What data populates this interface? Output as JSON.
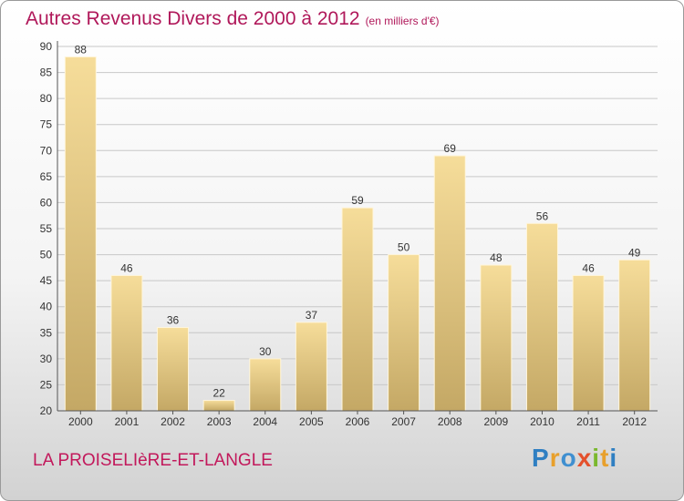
{
  "chart_data": {
    "type": "bar",
    "title": "Autres Revenus Divers de 2000 à 2012",
    "unit_note": "(en milliers d'€)",
    "categories": [
      "2000",
      "2001",
      "2002",
      "2003",
      "2004",
      "2005",
      "2006",
      "2007",
      "2008",
      "2009",
      "2010",
      "2011",
      "2012"
    ],
    "values": [
      88,
      46,
      36,
      22,
      30,
      37,
      59,
      50,
      69,
      48,
      56,
      46,
      49
    ],
    "ylim": [
      20,
      90
    ],
    "yticks": [
      20,
      25,
      30,
      35,
      40,
      45,
      50,
      55,
      60,
      65,
      70,
      75,
      80,
      85,
      90
    ],
    "grid": true,
    "bar_color": "#e8cc88"
  },
  "footer": {
    "place_name": "LA PROISELIèRE-ET-LANGLE",
    "logo": [
      "Pro",
      "x",
      "iti"
    ]
  }
}
